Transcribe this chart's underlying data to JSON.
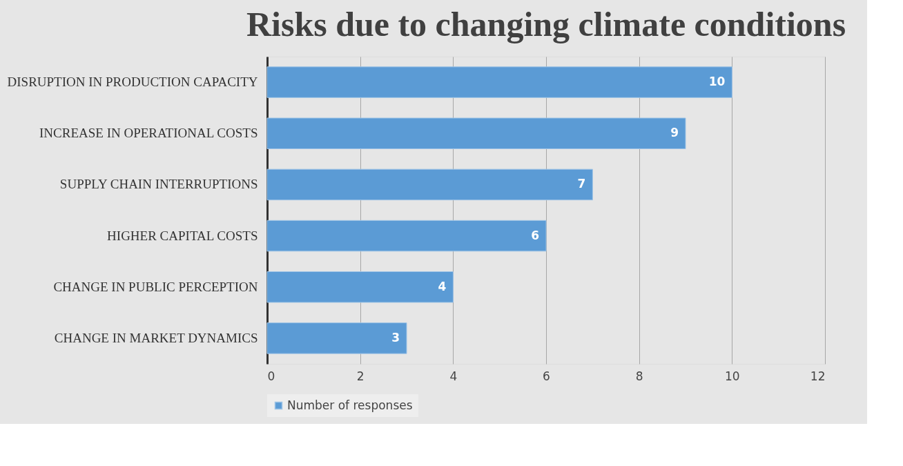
{
  "chart_data": {
    "type": "bar",
    "orientation": "horizontal",
    "title": "Risks due to changing climate conditions",
    "categories": [
      "DISRUPTION IN PRODUCTION CAPACITY",
      "INCREASE IN OPERATIONAL COSTS",
      "SUPPLY CHAIN INTERRUPTIONS",
      "HIGHER CAPITAL COSTS",
      "CHANGE IN PUBLIC PERCEPTION",
      "CHANGE IN MARKET DYNAMICS"
    ],
    "series": [
      {
        "name": "Number of responses",
        "color": "#5b9bd5",
        "values": [
          10,
          9,
          7,
          6,
          4,
          3
        ]
      }
    ],
    "xlim": [
      0,
      12
    ],
    "xticks": [
      0,
      2,
      4,
      6,
      8,
      10,
      12
    ],
    "grid": "x",
    "legend": "bottom",
    "data_labels": true
  }
}
